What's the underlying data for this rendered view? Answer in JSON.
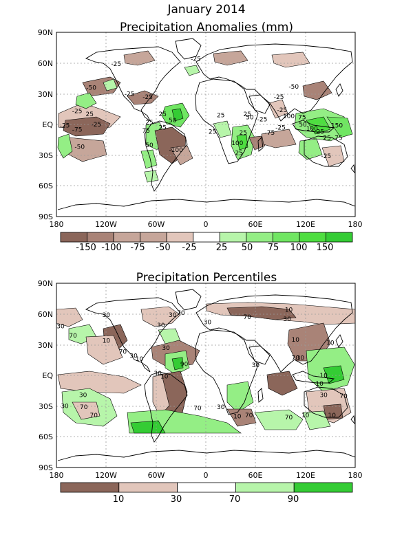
{
  "titles": {
    "main": "January 2014",
    "anomaly": "Precipitation Anomalies (mm)",
    "percentile": "Precipitation Percentiles"
  },
  "axes": {
    "lat_labels": [
      "90N",
      "60N",
      "30N",
      "EQ",
      "30S",
      "60S",
      "90S"
    ],
    "lon_labels": [
      "180",
      "120W",
      "60W",
      "0",
      "60E",
      "120E",
      "180"
    ]
  },
  "colors": {
    "dry3": "#8b665a",
    "dry2": "#a98377",
    "dry1": "#c6a69a",
    "dry0": "#e2c6bb",
    "wet0": "#b7f5aa",
    "wet1": "#94ee85",
    "wet2": "#70e662",
    "wet3": "#4ede40",
    "wet4": "#34cc34",
    "coast": "#000000",
    "grid": "#9a9a9a"
  },
  "anomaly_colorbar": {
    "labels": [
      "-150",
      "-100",
      "-75",
      "-50",
      "-25",
      "25",
      "50",
      "75",
      "100",
      "150"
    ],
    "box_colors": [
      "dry3",
      "dry2",
      "dry1",
      "dry1",
      "dry0",
      "white",
      "wet0",
      "wet1",
      "wet2",
      "wet3",
      "wet4"
    ]
  },
  "percentile_colorbar": {
    "labels": [
      "10",
      "30",
      "70",
      "90"
    ],
    "box_colors": [
      "dry3",
      "dry0",
      "white",
      "wet0",
      "wet4"
    ]
  },
  "anomaly_contour_labels": [
    {
      "text": "-25",
      "lon": -108,
      "lat": 57
    },
    {
      "text": "-25",
      "lon": -12,
      "lat": 62
    },
    {
      "text": "-50",
      "lon": -138,
      "lat": 34
    },
    {
      "text": "-25",
      "lon": -92,
      "lat": 28
    },
    {
      "text": "-25",
      "lon": -70,
      "lat": 25
    },
    {
      "text": "-25",
      "lon": -155,
      "lat": 11
    },
    {
      "text": "25",
      "lon": -140,
      "lat": 8
    },
    {
      "text": "-25",
      "lon": -132,
      "lat": -2
    },
    {
      "text": "-25",
      "lon": -170,
      "lat": -3
    },
    {
      "text": "-75",
      "lon": -155,
      "lat": -7
    },
    {
      "text": "25",
      "lon": -68,
      "lat": 0
    },
    {
      "text": "25",
      "lon": -52,
      "lat": 8
    },
    {
      "text": "50",
      "lon": -40,
      "lat": 2
    },
    {
      "text": "75",
      "lon": -72,
      "lat": -8
    },
    {
      "text": "25",
      "lon": -52,
      "lat": -5
    },
    {
      "text": "50",
      "lon": -68,
      "lat": -22
    },
    {
      "text": "-50",
      "lon": -152,
      "lat": -24
    },
    {
      "text": "-100",
      "lon": -36,
      "lat": -27
    },
    {
      "text": "25",
      "lon": 18,
      "lat": 7
    },
    {
      "text": "25",
      "lon": 8,
      "lat": -9
    },
    {
      "text": "50",
      "lon": 53,
      "lat": 5
    },
    {
      "text": "25",
      "lon": 45,
      "lat": -10
    },
    {
      "text": "100",
      "lon": 38,
      "lat": -20
    },
    {
      "text": "25",
      "lon": 40,
      "lat": -30
    },
    {
      "text": "-25",
      "lon": 68,
      "lat": 3
    },
    {
      "text": "-75",
      "lon": 77,
      "lat": -10
    },
    {
      "text": "25",
      "lon": 50,
      "lat": 8
    },
    {
      "text": "-25",
      "lon": 90,
      "lat": -5
    },
    {
      "text": "-25",
      "lon": 88,
      "lat": 25
    },
    {
      "text": "-50",
      "lon": 106,
      "lat": 35
    },
    {
      "text": "-25",
      "lon": 92,
      "lat": 12
    },
    {
      "text": "100",
      "lon": 100,
      "lat": 6
    },
    {
      "text": "75",
      "lon": 116,
      "lat": 5
    },
    {
      "text": "50",
      "lon": 117,
      "lat": -2
    },
    {
      "text": "100",
      "lon": 128,
      "lat": -6
    },
    {
      "text": "25",
      "lon": 138,
      "lat": -9
    },
    {
      "text": "150",
      "lon": 158,
      "lat": -3
    },
    {
      "text": "25",
      "lon": 146,
      "lat": -15
    },
    {
      "text": "75",
      "lon": 160,
      "lat": -15
    },
    {
      "text": "-25",
      "lon": 145,
      "lat": -33
    }
  ],
  "percentile_contour_labels": [
    {
      "text": "10",
      "lon": 100,
      "lat": 62
    },
    {
      "text": "30",
      "lon": -120,
      "lat": 57
    },
    {
      "text": "30",
      "lon": -40,
      "lat": 57
    },
    {
      "text": "70",
      "lon": -30,
      "lat": 59
    },
    {
      "text": "30",
      "lon": -54,
      "lat": 47
    },
    {
      "text": "30",
      "lon": 2,
      "lat": 50
    },
    {
      "text": "70",
      "lon": 50,
      "lat": 55
    },
    {
      "text": "30",
      "lon": 98,
      "lat": 53
    },
    {
      "text": "30",
      "lon": -175,
      "lat": 46
    },
    {
      "text": "70",
      "lon": -160,
      "lat": 37
    },
    {
      "text": "10",
      "lon": -120,
      "lat": 32
    },
    {
      "text": "70",
      "lon": -100,
      "lat": 21
    },
    {
      "text": "30",
      "lon": -87,
      "lat": 17
    },
    {
      "text": "10",
      "lon": -80,
      "lat": 14
    },
    {
      "text": "30",
      "lon": -48,
      "lat": 25
    },
    {
      "text": "90",
      "lon": -26,
      "lat": 9
    },
    {
      "text": "30",
      "lon": -58,
      "lat": 0
    },
    {
      "text": "10",
      "lon": -50,
      "lat": -3
    },
    {
      "text": "10",
      "lon": 108,
      "lat": 33
    },
    {
      "text": "10",
      "lon": 150,
      "lat": 30
    },
    {
      "text": "30",
      "lon": 114,
      "lat": 15
    },
    {
      "text": "70",
      "lon": 108,
      "lat": 15
    },
    {
      "text": "30",
      "lon": 60,
      "lat": 8
    },
    {
      "text": "30",
      "lon": -148,
      "lat": -21
    },
    {
      "text": "30",
      "lon": -170,
      "lat": -32
    },
    {
      "text": "70",
      "lon": -147,
      "lat": -33
    },
    {
      "text": "70",
      "lon": -135,
      "lat": -41
    },
    {
      "text": "70",
      "lon": -10,
      "lat": -34
    },
    {
      "text": "30",
      "lon": 18,
      "lat": -33
    },
    {
      "text": "10",
      "lon": 38,
      "lat": -42
    },
    {
      "text": "70",
      "lon": 52,
      "lat": -41
    },
    {
      "text": "70",
      "lon": 100,
      "lat": -43
    },
    {
      "text": "10",
      "lon": 120,
      "lat": -41
    },
    {
      "text": "10",
      "lon": 152,
      "lat": -41
    },
    {
      "text": "30",
      "lon": 142,
      "lat": -21
    },
    {
      "text": "70",
      "lon": 166,
      "lat": -22
    },
    {
      "text": "10",
      "lon": 137,
      "lat": -10
    },
    {
      "text": "10",
      "lon": 142,
      "lat": -2
    }
  ]
}
